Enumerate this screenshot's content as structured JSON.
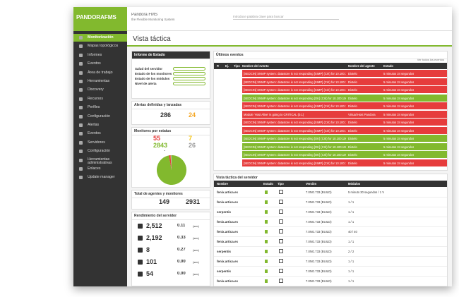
{
  "header": {
    "logo": "PANDORAFMS",
    "product": "Pandora FMS",
    "tagline": "the Flexible Monitoring System",
    "search_placeholder": "Introduce palabra clave para buscar"
  },
  "menu": [
    "Monitorización",
    "Mapas topológicos",
    "Informes",
    "Eventos",
    "Área de trabajo",
    "Herramientas",
    "Discovery",
    "Recursos",
    "Perfiles",
    "Configuración",
    "Alertas",
    "Eventos",
    "Servidores",
    "Configuración",
    "Herramientas administrativas",
    "Enlaces",
    "Update manager"
  ],
  "page_title": "Vista táctica",
  "status_report": {
    "title": "Informe de Estado",
    "rows": [
      "Salud del servidor",
      "Estado de los monitores",
      "Estado de los módulos",
      "Nivel de alerta"
    ]
  },
  "alerts": {
    "title": "Alertas definidas y lanzadas",
    "defined": 286,
    "fired": 24
  },
  "monitors": {
    "title": "Monitores por estatus",
    "critical": 55,
    "warning": 7,
    "normal": 2843,
    "unknown": 26,
    "not_init": "-",
    "colors": {
      "critical": "#e63c3c",
      "warning": "#f5c518",
      "normal": "#82b92e",
      "unknown": "#b2b2b2"
    }
  },
  "totals": {
    "title": "Total de agentes y monitores",
    "agents": 149,
    "monitors": 2931
  },
  "performance": {
    "title": "Rendimiento del servidor",
    "rows": [
      {
        "value": "2,512",
        "rate": "0.11",
        "unit": "(sec)"
      },
      {
        "value": "2,192",
        "rate": "0.33",
        "unit": "(sec)"
      },
      {
        "value": "8",
        "rate": "0.27",
        "unit": "(sec)"
      },
      {
        "value": "101",
        "rate": "0.00",
        "unit": "(sec)"
      },
      {
        "value": "54",
        "rate": "0.00",
        "unit": "(sec)"
      }
    ]
  },
  "events": {
    "title": "Últimos eventos",
    "link": "Ver todos los eventos",
    "columns": [
      "P.",
      "Ej.",
      "Tipo",
      "Nombre del evento",
      "Nombre del agente",
      "Estado"
    ],
    "colors": {
      "bad": "#e63c3c",
      "ok": "#82b92e"
    },
    "rows": [
      {
        "text": "[SEDCIN] SNMP system: datastore is not responding [SIMP] (Crit) for 10.100.100.1",
        "agent": "Dixtelo",
        "time": "5 minutos 24 segundos",
        "state": "bad"
      },
      {
        "text": "[SEDCIN] SNMP system: datastore is not responding [SIMP] (Crit) for 10.100.100.1",
        "agent": "Dixtelo",
        "time": "5 minutos 24 segundos",
        "state": "bad"
      },
      {
        "text": "[SEDCIN] SNMP system: datastore is not responding [SIMP] (Crit) for 10.100.100.1",
        "agent": "Dixtelo",
        "time": "5 minutos 24 segundos",
        "state": "bad"
      },
      {
        "text": "[SEDCIN] SNMP system: datastore is not responding [OK] (Crit) for 10.100.100.1",
        "agent": "Dixtelo",
        "time": "5 minutos 24 segundos",
        "state": "ok"
      },
      {
        "text": "[SEDCIN] SNMP system: datastore is not responding [SIMP] (Crit) for 10.100.100.1",
        "agent": "Dixtelo",
        "time": "5 minutos 24 segundos",
        "state": "bad"
      },
      {
        "text": "Module 'Host Alive' is going to CRITICAL (0.1)",
        "agent": "Virtual Host Pandora",
        "time": "5 minutos 24 segundos",
        "state": "bad"
      },
      {
        "text": "[SEDCIN] SNMP system: datastore is not responding [SIMP] (Crit) for 10.100.100.1",
        "agent": "Dixtelo",
        "time": "5 minutos 24 segundos",
        "state": "bad"
      },
      {
        "text": "[SEDCIN] SNMP system: datastore is not responding [SIMP] (Crit) for 10.100.100.1",
        "agent": "Dixtelo",
        "time": "5 minutos 24 segundos",
        "state": "bad"
      },
      {
        "text": "[SEDCIN] SNMP system: datastore is not responding [OK] (Crit) for 10.100.100.1",
        "agent": "Dixtelo",
        "time": "5 minutos 24 segundos",
        "state": "ok"
      },
      {
        "text": "[SEDCIN] SNMP system: datastore is not responding [OK] (Crit) for 10.100.100.1",
        "agent": "Dixtelo",
        "time": "5 minutos 24 segundos",
        "state": "ok"
      },
      {
        "text": "[SEDCIN] SNMP system: datastore is not responding [OK] (Crit) for 10.100.100.1",
        "agent": "Dixtelo",
        "time": "5 minutos 24 segundos",
        "state": "ok"
      },
      {
        "text": "[SEDCIN] SNMP system: datastore is not responding [SIMP] (Crit) for 10.100.100.1",
        "agent": "Dixtelo",
        "time": "5 minutos 24 segundos",
        "state": "bad"
      }
    ]
  },
  "servers": {
    "title": "Vista táctica del servidor",
    "columns": [
      "Nombre",
      "Estado",
      "Tipo",
      "Versión",
      "Módulos"
    ],
    "rows": [
      {
        "name": "fenix.artica.es",
        "version": "7.0NG.733 (BUILD)",
        "modules": "5 minuto 30 segundos / 1 V"
      },
      {
        "name": "fenix.artica.es",
        "version": "7.0NG.733 (BUILD)",
        "modules": "1 / 1"
      },
      {
        "name": "serpentis",
        "version": "7.0NG.733 (BUILD)",
        "modules": "1 / 1"
      },
      {
        "name": "fenix.artica.es",
        "version": "7.0NG.733 (BUILD)",
        "modules": "1 / 1"
      },
      {
        "name": "fenix.artica.es",
        "version": "7.0NG.733 (BUILD)",
        "modules": "40 / 40"
      },
      {
        "name": "fenix.artica.es",
        "version": "7.0NG.733 (BUILD)",
        "modules": "1 / 1"
      },
      {
        "name": "serpentis",
        "version": "7.0NG.733 (BUILD)",
        "modules": "2 / 2"
      },
      {
        "name": "fenix.artica.es",
        "version": "7.0NG.733 (BUILD)",
        "modules": "1 / 1"
      },
      {
        "name": "serpentis",
        "version": "7.0NG.733 (BUILD)",
        "modules": "1 / 1"
      },
      {
        "name": "fenix.artica.es",
        "version": "7.0NG.733 (BUILD)",
        "modules": "1 / 1"
      }
    ]
  }
}
